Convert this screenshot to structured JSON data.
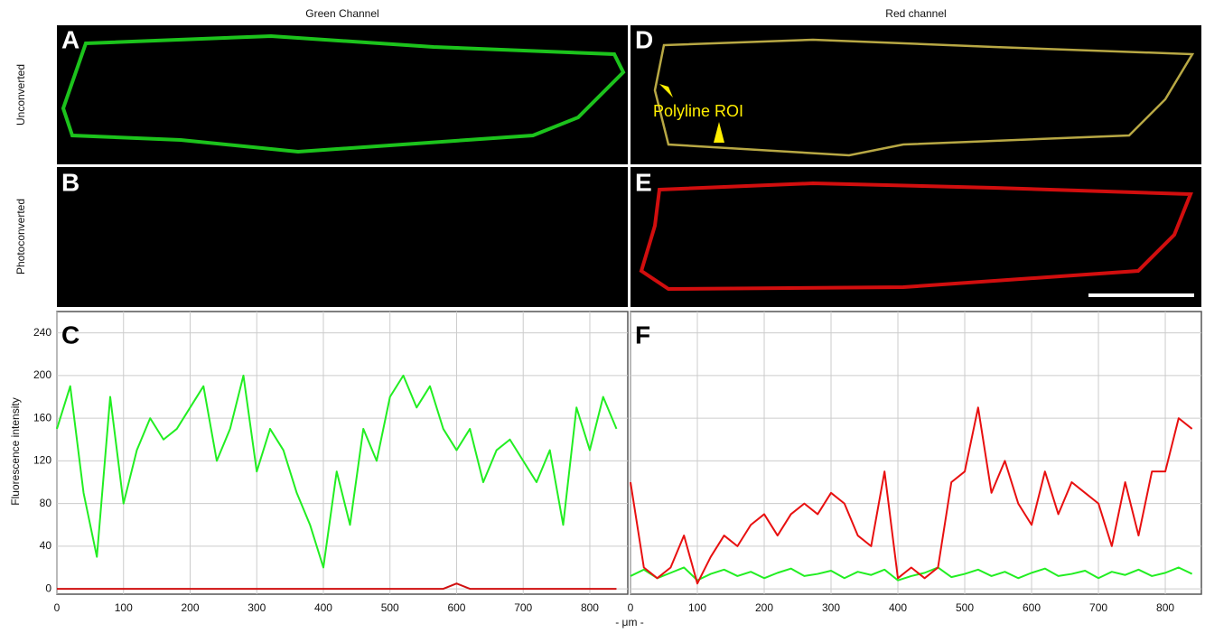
{
  "figure": {
    "column_titles": [
      "Green Channel",
      "Red channel"
    ],
    "row_labels": [
      "Unconverted",
      "Photoconverted"
    ],
    "image_panels": [
      "A",
      "B",
      "D",
      "E"
    ],
    "annotation": "Polyline ROI",
    "x_label": "- μm -"
  },
  "chart_data": [
    {
      "type": "line",
      "panel_label": "C",
      "y_label": "Fluorescence intensity",
      "x": [
        0,
        20,
        40,
        60,
        80,
        100,
        120,
        140,
        160,
        180,
        200,
        220,
        240,
        260,
        280,
        300,
        320,
        340,
        360,
        380,
        400,
        420,
        440,
        460,
        480,
        500,
        520,
        540,
        560,
        580,
        600,
        620,
        640,
        660,
        680,
        700,
        720,
        740,
        760,
        780,
        800,
        820,
        840
      ],
      "series": [
        {
          "color": "#22ee22",
          "values": [
            150,
            190,
            90,
            30,
            180,
            80,
            130,
            160,
            140,
            150,
            170,
            190,
            120,
            150,
            200,
            110,
            150,
            130,
            90,
            60,
            20,
            110,
            60,
            150,
            120,
            180,
            200,
            170,
            190,
            150,
            130,
            150,
            100,
            130,
            140,
            120,
            100,
            130,
            60,
            170,
            130,
            180,
            150
          ]
        },
        {
          "color": "#d01010",
          "values": [
            0,
            0,
            0,
            0,
            0,
            0,
            0,
            0,
            0,
            0,
            0,
            0,
            0,
            0,
            0,
            0,
            0,
            0,
            0,
            0,
            0,
            0,
            0,
            0,
            0,
            0,
            0,
            0,
            0,
            0,
            5,
            0,
            0,
            0,
            0,
            0,
            0,
            0,
            0,
            0,
            0,
            0,
            0
          ]
        }
      ],
      "xlim": [
        0,
        857
      ],
      "ylim": [
        -5,
        260
      ],
      "xticks": [
        0,
        100,
        200,
        300,
        400,
        500,
        600,
        700,
        800
      ],
      "yticks": [
        0,
        40,
        80,
        120,
        160,
        200,
        240
      ],
      "grid": true
    },
    {
      "type": "line",
      "panel_label": "F",
      "x": [
        0,
        20,
        40,
        60,
        80,
        100,
        120,
        140,
        160,
        180,
        200,
        220,
        240,
        260,
        280,
        300,
        320,
        340,
        360,
        380,
        400,
        420,
        440,
        460,
        480,
        500,
        520,
        540,
        560,
        580,
        600,
        620,
        640,
        660,
        680,
        700,
        720,
        740,
        760,
        780,
        800,
        820,
        840
      ],
      "series": [
        {
          "color": "#22ee22",
          "values": [
            12,
            18,
            10,
            15,
            20,
            8,
            14,
            18,
            12,
            16,
            10,
            15,
            19,
            12,
            14,
            17,
            10,
            16,
            13,
            18,
            8,
            12,
            15,
            20,
            11,
            14,
            18,
            12,
            16,
            10,
            15,
            19,
            12,
            14,
            17,
            10,
            16,
            13,
            18,
            12,
            15,
            20,
            14
          ]
        },
        {
          "color": "#e81010",
          "values": [
            100,
            20,
            10,
            20,
            50,
            5,
            30,
            50,
            40,
            60,
            70,
            50,
            70,
            80,
            70,
            90,
            80,
            50,
            40,
            110,
            10,
            20,
            10,
            20,
            100,
            110,
            170,
            90,
            120,
            80,
            60,
            110,
            70,
            100,
            90,
            80,
            40,
            100,
            50,
            110,
            110,
            160,
            150
          ]
        }
      ],
      "xlim": [
        0,
        854
      ],
      "ylim": [
        -5,
        260
      ],
      "xticks": [
        0,
        100,
        200,
        300,
        400,
        500,
        600,
        700,
        800
      ],
      "grid": true
    }
  ]
}
